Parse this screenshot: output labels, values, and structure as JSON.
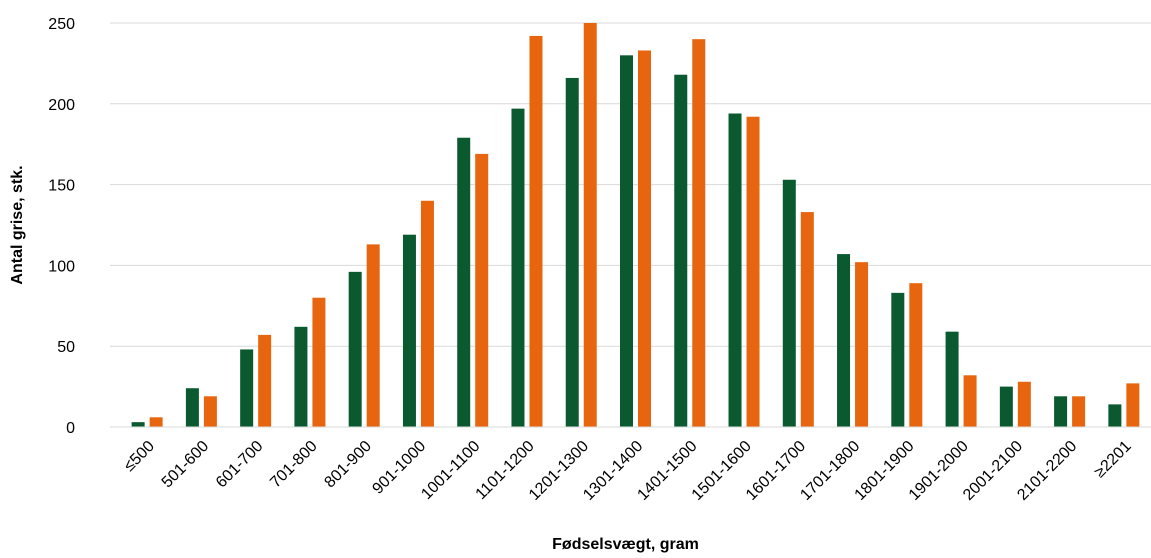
{
  "chart_data": {
    "type": "bar",
    "title": "",
    "xlabel": "Fødselsvægt, gram",
    "ylabel": "Antal grise, stk.",
    "ylim": [
      0,
      250
    ],
    "yticks": [
      0,
      50,
      100,
      150,
      200,
      250
    ],
    "grid": true,
    "legend": "none",
    "categories": [
      "≤500",
      "501-600",
      "601-700",
      "701-800",
      "801-900",
      "901-1000",
      "1001-1100",
      "1101-1200",
      "1201-1300",
      "1301-1400",
      "1401-1500",
      "1501-1600",
      "1601-1700",
      "1701-1800",
      "1801-1900",
      "1901-2000",
      "2001-2100",
      "2101-2200",
      "≥2201"
    ],
    "series": [
      {
        "color": "#0b5a2f",
        "values": [
          3,
          24,
          48,
          62,
          96,
          119,
          179,
          197,
          216,
          230,
          218,
          194,
          153,
          107,
          83,
          59,
          25,
          19,
          14
        ]
      },
      {
        "color": "#e8650f",
        "values": [
          6,
          19,
          57,
          80,
          113,
          140,
          169,
          242,
          250,
          233,
          240,
          192,
          133,
          102,
          89,
          32,
          28,
          19,
          27
        ]
      }
    ]
  }
}
